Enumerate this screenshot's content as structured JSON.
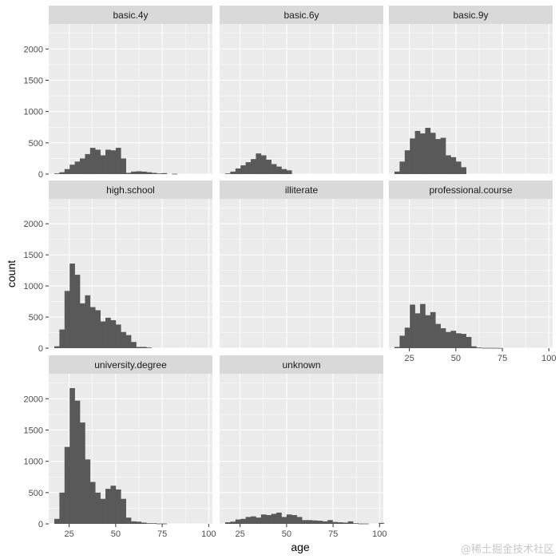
{
  "chart_data": {
    "type": "bar",
    "kind": "faceted-histogram",
    "xlabel": "age",
    "ylabel": "count",
    "xlim": [
      14,
      102
    ],
    "ylim": [
      0,
      2400
    ],
    "x_ticks": [
      25,
      50,
      75,
      100
    ],
    "y_ticks": [
      0,
      500,
      1000,
      1500,
      2000
    ],
    "bin_width": 2.75,
    "bin_start": 17,
    "grid": true,
    "colors": {
      "panel_bg": "#ebebeb",
      "grid": "#ffffff",
      "strip_bg": "#d9d9d9",
      "bar": "#595959"
    },
    "panels": [
      {
        "label": "basic.4y",
        "counts": [
          10,
          30,
          80,
          150,
          200,
          250,
          320,
          420,
          390,
          300,
          390,
          380,
          420,
          250,
          20,
          40,
          45,
          40,
          30,
          20,
          10,
          15,
          0,
          5
        ]
      },
      {
        "label": "basic.6y",
        "counts": [
          10,
          40,
          90,
          140,
          190,
          240,
          330,
          300,
          230,
          160,
          120,
          80,
          60
        ]
      },
      {
        "label": "basic.9y",
        "counts": [
          40,
          200,
          380,
          570,
          690,
          650,
          740,
          660,
          560,
          580,
          300,
          270,
          200,
          110
        ]
      },
      {
        "label": "high.school",
        "counts": [
          30,
          300,
          920,
          1360,
          1180,
          720,
          850,
          660,
          610,
          430,
          490,
          450,
          380,
          260,
          210,
          100,
          20,
          20,
          10
        ]
      },
      {
        "label": "illiterate",
        "counts": []
      },
      {
        "label": "professional.course",
        "counts": [
          20,
          200,
          330,
          700,
          560,
          710,
          530,
          580,
          390,
          320,
          260,
          280,
          240,
          230,
          180,
          30,
          10,
          5,
          5,
          5,
          3
        ]
      },
      {
        "label": "university.degree",
        "counts": [
          80,
          500,
          1230,
          2170,
          1970,
          1620,
          1030,
          670,
          500,
          400,
          560,
          610,
          550,
          400,
          100,
          40,
          35,
          20,
          10,
          10,
          5,
          5
        ]
      },
      {
        "label": "unknown",
        "counts": [
          25,
          35,
          70,
          80,
          110,
          120,
          100,
          150,
          140,
          160,
          180,
          110,
          150,
          140,
          110,
          60,
          60,
          55,
          50,
          40,
          60,
          30,
          25,
          20,
          40,
          10,
          5,
          5,
          0,
          0,
          15
        ]
      }
    ]
  },
  "watermark": "@稀土掘金技术社区"
}
